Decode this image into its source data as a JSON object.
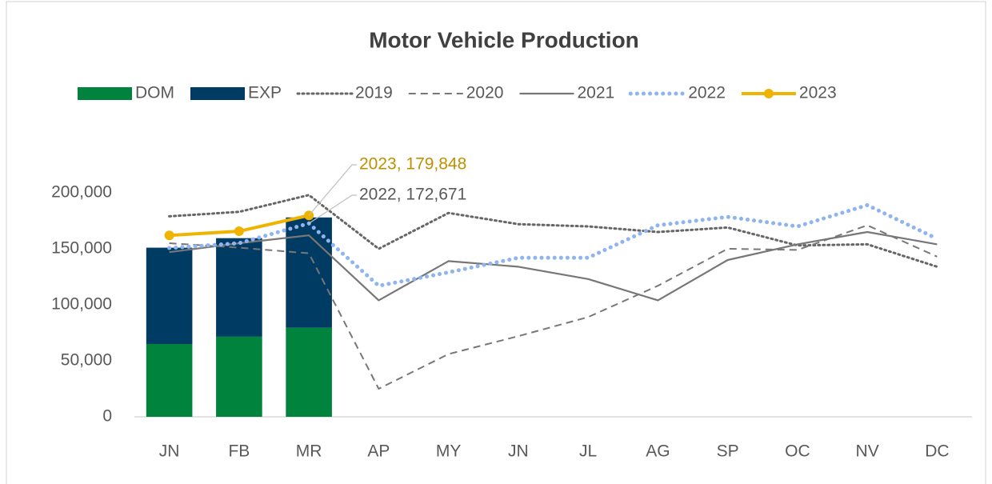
{
  "chart_data": {
    "type": "combo",
    "title": "Motor Vehicle Production",
    "categories": [
      "JN",
      "FB",
      "MR",
      "AP",
      "MY",
      "JN",
      "JL",
      "AG",
      "SP",
      "OC",
      "NV",
      "DC"
    ],
    "ylim": [
      0,
      250000
    ],
    "yticks": [
      0,
      {
        "value": 50000,
        "label": "50,000"
      },
      {
        "value": 100000,
        "label": "100,000"
      },
      {
        "value": 150000,
        "label": "150,000"
      },
      {
        "value": 200000,
        "label": "200,000"
      }
    ],
    "grid": false,
    "legend": "top",
    "series": [
      {
        "name": "DOM",
        "type": "bar",
        "color": "#00843D",
        "values": [
          65000,
          71500,
          79500,
          null,
          null,
          null,
          null,
          null,
          null,
          null,
          null,
          null
        ]
      },
      {
        "name": "EXP",
        "type": "bar",
        "color": "#003B64",
        "values": [
          86000,
          88000,
          98500,
          null,
          null,
          null,
          null,
          null,
          null,
          null,
          null,
          null
        ]
      },
      {
        "name": "2019",
        "type": "line",
        "line_style": "dotted",
        "color": "#666666",
        "values": [
          179000,
          183000,
          198000,
          150000,
          182000,
          172000,
          170000,
          165000,
          169000,
          153000,
          154000,
          134000
        ]
      },
      {
        "name": "2020",
        "type": "line",
        "line_style": "dashed",
        "color": "#777777",
        "values": [
          155000,
          151000,
          146000,
          25000,
          56000,
          72000,
          89000,
          117000,
          150000,
          149000,
          171000,
          143000
        ]
      },
      {
        "name": "2021",
        "type": "line",
        "line_style": "solid",
        "color": "#777777",
        "values": [
          147000,
          155000,
          162000,
          104000,
          139000,
          134000,
          123000,
          104000,
          140000,
          154000,
          165000,
          154000
        ]
      },
      {
        "name": "2022",
        "type": "line",
        "line_style": "dotted-thick",
        "color": "#8FB4F0",
        "values": [
          150700,
          155000,
          172671,
          117000,
          129000,
          142000,
          142000,
          171000,
          178500,
          170000,
          189000,
          159000
        ]
      },
      {
        "name": "2023",
        "type": "line",
        "line_style": "marker",
        "color": "#F0B400",
        "values": [
          162000,
          165700,
          179848,
          null,
          null,
          null,
          null,
          null,
          null,
          null,
          null,
          null
        ]
      }
    ],
    "annotations": [
      {
        "text": "2023, 179,848",
        "color": "#BF9000"
      },
      {
        "text": "2022, 172,671",
        "color": "#595959"
      }
    ]
  }
}
